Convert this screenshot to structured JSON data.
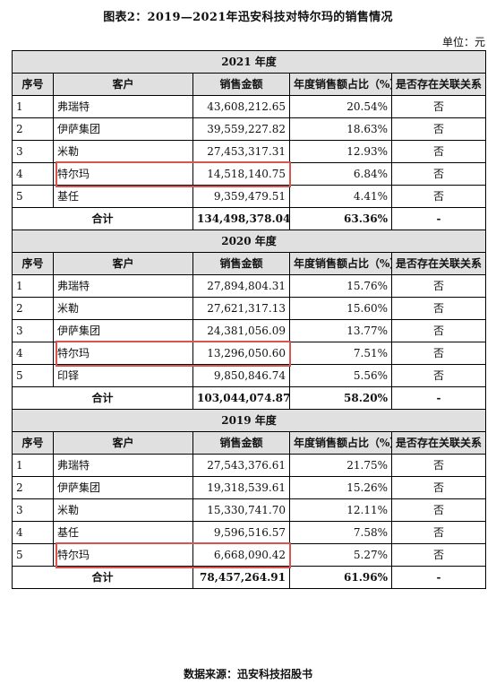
{
  "title": "图表2：2019—2021年迅安科技对特尔玛的销售情况",
  "unit": "单位：元",
  "headers": {
    "no": "序号",
    "customer": "客户",
    "amount": "销售金额",
    "pct": "年度销售额占比（%）",
    "related": "是否存在关联关系"
  },
  "sections": [
    {
      "year": "2021 年度",
      "rows": [
        {
          "no": "1",
          "customer": "弗瑞特",
          "amount": "43,608,212.65",
          "pct": "20.54%",
          "related": "否"
        },
        {
          "no": "2",
          "customer": "伊萨集团",
          "amount": "39,559,227.82",
          "pct": "18.63%",
          "related": "否"
        },
        {
          "no": "3",
          "customer": "米勒",
          "amount": "27,453,317.31",
          "pct": "12.93%",
          "related": "否"
        },
        {
          "no": "4",
          "customer": "特尔玛",
          "amount": "14,518,140.75",
          "pct": "6.84%",
          "related": "否"
        },
        {
          "no": "5",
          "customer": "基任",
          "amount": "9,359,479.51",
          "pct": "4.41%",
          "related": "否"
        }
      ],
      "total": {
        "label": "合计",
        "amount": "134,498,378.04",
        "pct": "63.36%",
        "related": "-"
      }
    },
    {
      "year": "2020 年度",
      "rows": [
        {
          "no": "1",
          "customer": "弗瑞特",
          "amount": "27,894,804.31",
          "pct": "15.76%",
          "related": "否"
        },
        {
          "no": "2",
          "customer": "米勒",
          "amount": "27,621,317.13",
          "pct": "15.60%",
          "related": "否"
        },
        {
          "no": "3",
          "customer": "伊萨集团",
          "amount": "24,381,056.09",
          "pct": "13.77%",
          "related": "否"
        },
        {
          "no": "4",
          "customer": "特尔玛",
          "amount": "13,296,050.60",
          "pct": "7.51%",
          "related": "否"
        },
        {
          "no": "5",
          "customer": "印铎",
          "amount": "9,850,846.74",
          "pct": "5.56%",
          "related": "否"
        }
      ],
      "total": {
        "label": "合计",
        "amount": "103,044,074.87",
        "pct": "58.20%",
        "related": "-"
      }
    },
    {
      "year": "2019 年度",
      "rows": [
        {
          "no": "1",
          "customer": "弗瑞特",
          "amount": "27,543,376.61",
          "pct": "21.75%",
          "related": "否"
        },
        {
          "no": "2",
          "customer": "伊萨集团",
          "amount": "19,318,539.61",
          "pct": "15.26%",
          "related": "否"
        },
        {
          "no": "3",
          "customer": "米勒",
          "amount": "15,330,741.70",
          "pct": "12.11%",
          "related": "否"
        },
        {
          "no": "4",
          "customer": "基任",
          "amount": "9,596,516.57",
          "pct": "7.58%",
          "related": "否"
        },
        {
          "no": "5",
          "customer": "特尔玛",
          "amount": "6,668,090.42",
          "pct": "5.27%",
          "related": "否"
        }
      ],
      "total": {
        "label": "合计",
        "amount": "78,457,264.91",
        "pct": "61.96%",
        "related": "-"
      }
    }
  ],
  "source": "数据来源：迅安科技招股书",
  "colors": {
    "highlight": "#d9534f",
    "header_bg": "#e0e0e0"
  }
}
